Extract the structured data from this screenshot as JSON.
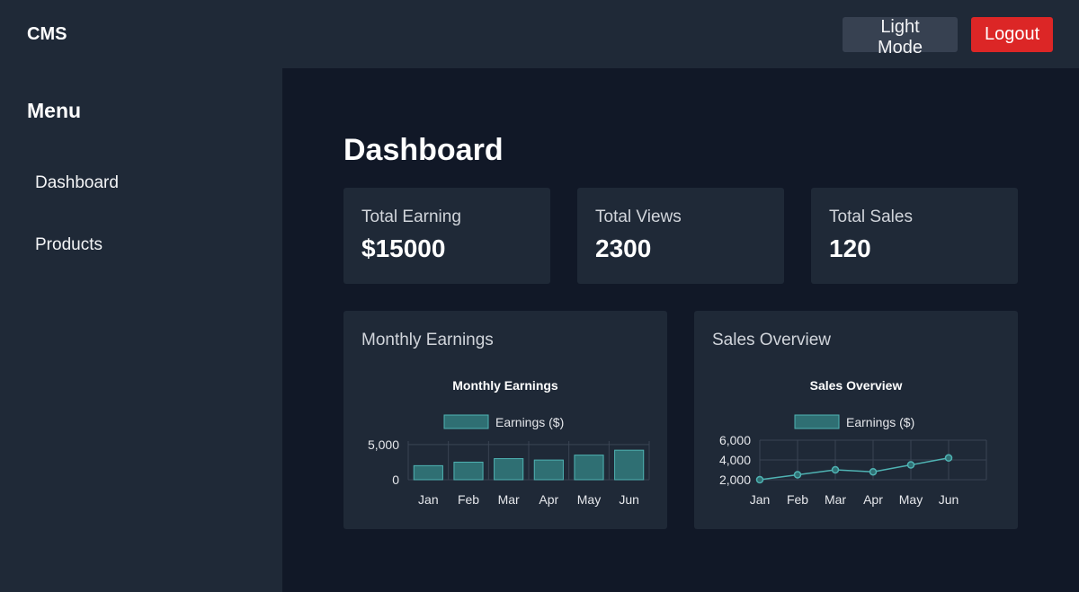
{
  "header": {
    "brand": "CMS",
    "light_mode_label": "Light Mode",
    "logout_label": "Logout"
  },
  "sidebar": {
    "title": "Menu",
    "items": [
      {
        "label": "Dashboard"
      },
      {
        "label": "Products"
      }
    ]
  },
  "main": {
    "title": "Dashboard",
    "stats": [
      {
        "label": "Total Earning",
        "value": "$15000"
      },
      {
        "label": "Total Views",
        "value": "2300"
      },
      {
        "label": "Total Sales",
        "value": "120"
      }
    ],
    "charts": [
      {
        "heading": "Monthly Earnings"
      },
      {
        "heading": "Sales Overview"
      }
    ]
  },
  "colors": {
    "accent": "#4fb3b3",
    "accent_fill": "#2f6f73",
    "logout": "#dc2626"
  },
  "chart_data": [
    {
      "type": "bar",
      "title": "Monthly Earnings",
      "categories": [
        "Jan",
        "Feb",
        "Mar",
        "Apr",
        "May",
        "Jun"
      ],
      "series": [
        {
          "name": "Earnings ($)",
          "values": [
            2000,
            2500,
            3000,
            2800,
            3500,
            4200
          ]
        }
      ],
      "yticks": [
        "0",
        "5,000"
      ],
      "ylim": [
        0,
        5500
      ],
      "legend": "top"
    },
    {
      "type": "line",
      "title": "Sales Overview",
      "categories": [
        "Jan",
        "Feb",
        "Mar",
        "Apr",
        "May",
        "Jun"
      ],
      "series": [
        {
          "name": "Earnings ($)",
          "values": [
            2000,
            2500,
            3000,
            2800,
            3500,
            4200
          ]
        }
      ],
      "yticks": [
        "2,000",
        "4,000",
        "6,000"
      ],
      "ylim": [
        2000,
        6000
      ],
      "legend": "top"
    }
  ]
}
